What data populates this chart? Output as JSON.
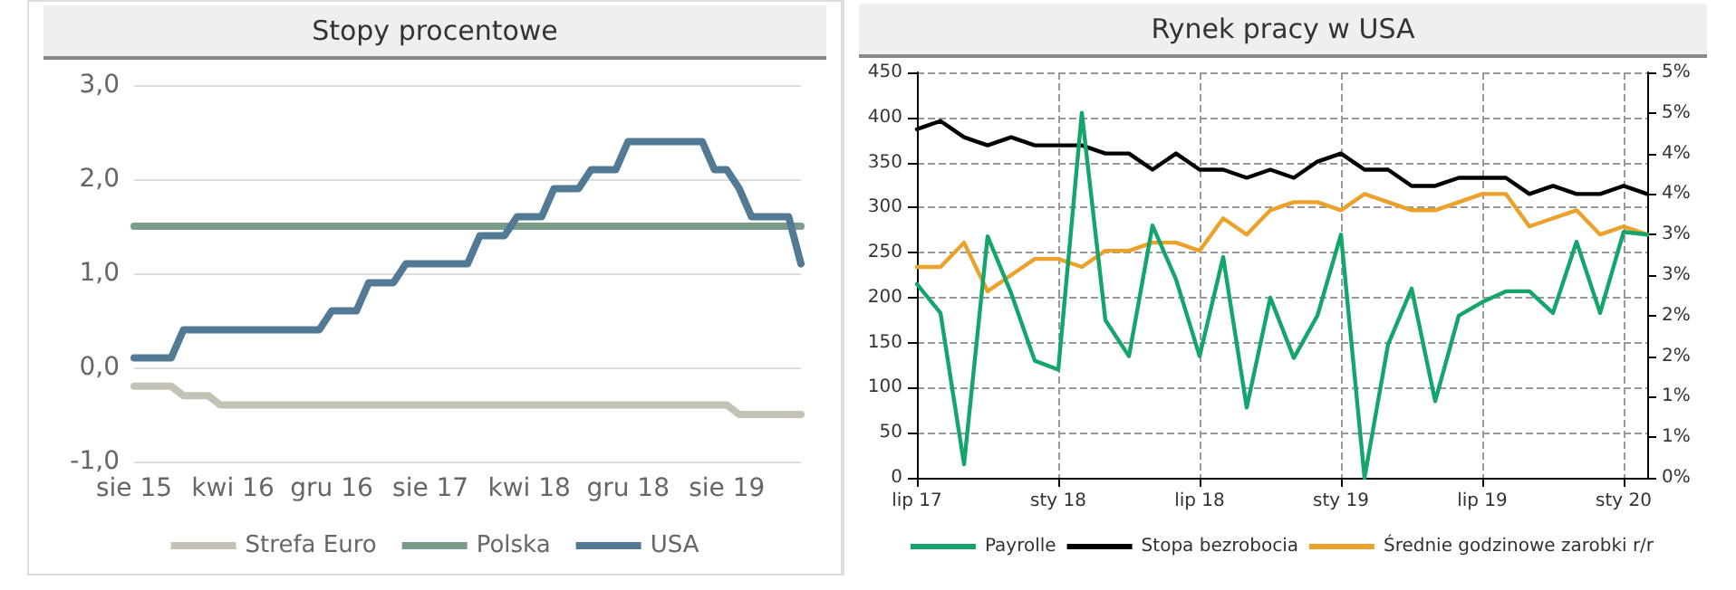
{
  "chart_data": [
    {
      "type": "line",
      "title": "Stopy procentowe",
      "categories": [
        "sie 15",
        null,
        null,
        null,
        null,
        null,
        null,
        null,
        "kwi 16",
        null,
        null,
        null,
        null,
        null,
        null,
        null,
        "gru 16",
        null,
        null,
        null,
        null,
        null,
        null,
        null,
        "sie 17",
        null,
        null,
        null,
        null,
        null,
        null,
        null,
        "kwi 18",
        null,
        null,
        null,
        null,
        null,
        null,
        null,
        "gru 18",
        null,
        null,
        null,
        null,
        null,
        null,
        null,
        "sie 19",
        null,
        null,
        null,
        null,
        null,
        null
      ],
      "series": [
        {
          "name": "Strefa Euro",
          "color": "#c3c2b4",
          "values": [
            -0.2,
            -0.2,
            -0.2,
            -0.2,
            -0.3,
            -0.3,
            -0.3,
            -0.4,
            -0.4,
            -0.4,
            -0.4,
            -0.4,
            -0.4,
            -0.4,
            -0.4,
            -0.4,
            -0.4,
            -0.4,
            -0.4,
            -0.4,
            -0.4,
            -0.4,
            -0.4,
            -0.4,
            -0.4,
            -0.4,
            -0.4,
            -0.4,
            -0.4,
            -0.4,
            -0.4,
            -0.4,
            -0.4,
            -0.4,
            -0.4,
            -0.4,
            -0.4,
            -0.4,
            -0.4,
            -0.4,
            -0.4,
            -0.4,
            -0.4,
            -0.4,
            -0.4,
            -0.4,
            -0.4,
            -0.4,
            -0.4,
            -0.5,
            -0.5,
            -0.5,
            -0.5,
            -0.5,
            -0.5
          ]
        },
        {
          "name": "Polska",
          "color": "#7b9c89",
          "values": [
            1.5,
            1.5,
            1.5,
            1.5,
            1.5,
            1.5,
            1.5,
            1.5,
            1.5,
            1.5,
            1.5,
            1.5,
            1.5,
            1.5,
            1.5,
            1.5,
            1.5,
            1.5,
            1.5,
            1.5,
            1.5,
            1.5,
            1.5,
            1.5,
            1.5,
            1.5,
            1.5,
            1.5,
            1.5,
            1.5,
            1.5,
            1.5,
            1.5,
            1.5,
            1.5,
            1.5,
            1.5,
            1.5,
            1.5,
            1.5,
            1.5,
            1.5,
            1.5,
            1.5,
            1.5,
            1.5,
            1.5,
            1.5,
            1.5,
            1.5,
            1.5,
            1.5,
            1.5,
            1.5,
            1.5
          ]
        },
        {
          "name": "USA",
          "color": "#527a94",
          "values": [
            0.1,
            0.1,
            0.1,
            0.1,
            0.4,
            0.4,
            0.4,
            0.4,
            0.4,
            0.4,
            0.4,
            0.4,
            0.4,
            0.4,
            0.4,
            0.4,
            0.6,
            0.6,
            0.6,
            0.9,
            0.9,
            0.9,
            1.1,
            1.1,
            1.1,
            1.1,
            1.1,
            1.1,
            1.4,
            1.4,
            1.4,
            1.6,
            1.6,
            1.6,
            1.9,
            1.9,
            1.9,
            2.1,
            2.1,
            2.1,
            2.4,
            2.4,
            2.4,
            2.4,
            2.4,
            2.4,
            2.4,
            2.1,
            2.1,
            1.9,
            1.6,
            1.6,
            1.6,
            1.6,
            1.1
          ]
        }
      ],
      "ylim": [
        -1,
        3
      ],
      "yticks": [
        {
          "value": -1,
          "label": "-1,0"
        },
        {
          "value": 0,
          "label": "0,0"
        },
        {
          "value": 1,
          "label": "1,0"
        },
        {
          "value": 2,
          "label": "2,0"
        },
        {
          "value": 3,
          "label": "3,0"
        }
      ],
      "grid": "y",
      "legend": "bottom"
    },
    {
      "type": "line",
      "title": "Rynek pracy w USA",
      "categories": [
        "lip 17",
        null,
        null,
        null,
        null,
        null,
        "sty 18",
        null,
        null,
        null,
        null,
        null,
        "lip 18",
        null,
        null,
        null,
        null,
        null,
        "sty 19",
        null,
        null,
        null,
        null,
        null,
        "lip 19",
        null,
        null,
        null,
        null,
        null,
        "sty 20",
        null
      ],
      "series": [
        {
          "name": "Payrolle",
          "color": "#13a56b",
          "values": [
            215,
            183,
            15,
            268,
            205,
            130,
            120,
            405,
            175,
            135,
            280,
            220,
            135,
            245,
            78,
            200,
            133,
            180,
            270,
            0,
            148,
            210,
            85,
            180,
            195,
            207,
            207,
            183,
            262,
            183,
            273,
            270
          ]
        },
        {
          "name": "Stopa bezrobocia",
          "color": "#000000",
          "axis": "y2",
          "values": [
            4.3,
            4.4,
            4.2,
            4.1,
            4.2,
            4.1,
            4.1,
            4.1,
            4.0,
            4.0,
            3.8,
            4.0,
            3.8,
            3.8,
            3.7,
            3.8,
            3.7,
            3.9,
            4.0,
            3.8,
            3.8,
            3.6,
            3.6,
            3.7,
            3.7,
            3.7,
            3.5,
            3.6,
            3.5,
            3.5,
            3.6,
            3.5
          ]
        },
        {
          "name": "Średnie godzinowe zarobki r/r",
          "color": "#eba22a",
          "axis": "y2",
          "values": [
            2.6,
            2.6,
            2.9,
            2.3,
            2.5,
            2.7,
            2.7,
            2.6,
            2.8,
            2.8,
            2.9,
            2.9,
            2.8,
            3.2,
            3.0,
            3.3,
            3.4,
            3.4,
            3.3,
            3.5,
            3.4,
            3.3,
            3.3,
            3.4,
            3.5,
            3.5,
            3.1,
            3.2,
            3.3,
            3.0,
            3.1,
            3.0
          ]
        }
      ],
      "ylim": [
        0,
        450
      ],
      "yticks": [
        0,
        50,
        100,
        150,
        200,
        250,
        300,
        350,
        400,
        450
      ],
      "y2lim": [
        0,
        5
      ],
      "y2ticks": [
        {
          "value": 0,
          "label": "0%"
        },
        {
          "value": 0.5,
          "label": "1%"
        },
        {
          "value": 1,
          "label": "1%"
        },
        {
          "value": 1.5,
          "label": "2%"
        },
        {
          "value": 2,
          "label": "2%"
        },
        {
          "value": 2.5,
          "label": "3%"
        },
        {
          "value": 3,
          "label": "3%"
        },
        {
          "value": 3.5,
          "label": "4%"
        },
        {
          "value": 4,
          "label": "4%"
        },
        {
          "value": 4.5,
          "label": "5%"
        },
        {
          "value": 5,
          "label": "5%"
        }
      ],
      "grid": true,
      "legend": "bottom"
    }
  ]
}
